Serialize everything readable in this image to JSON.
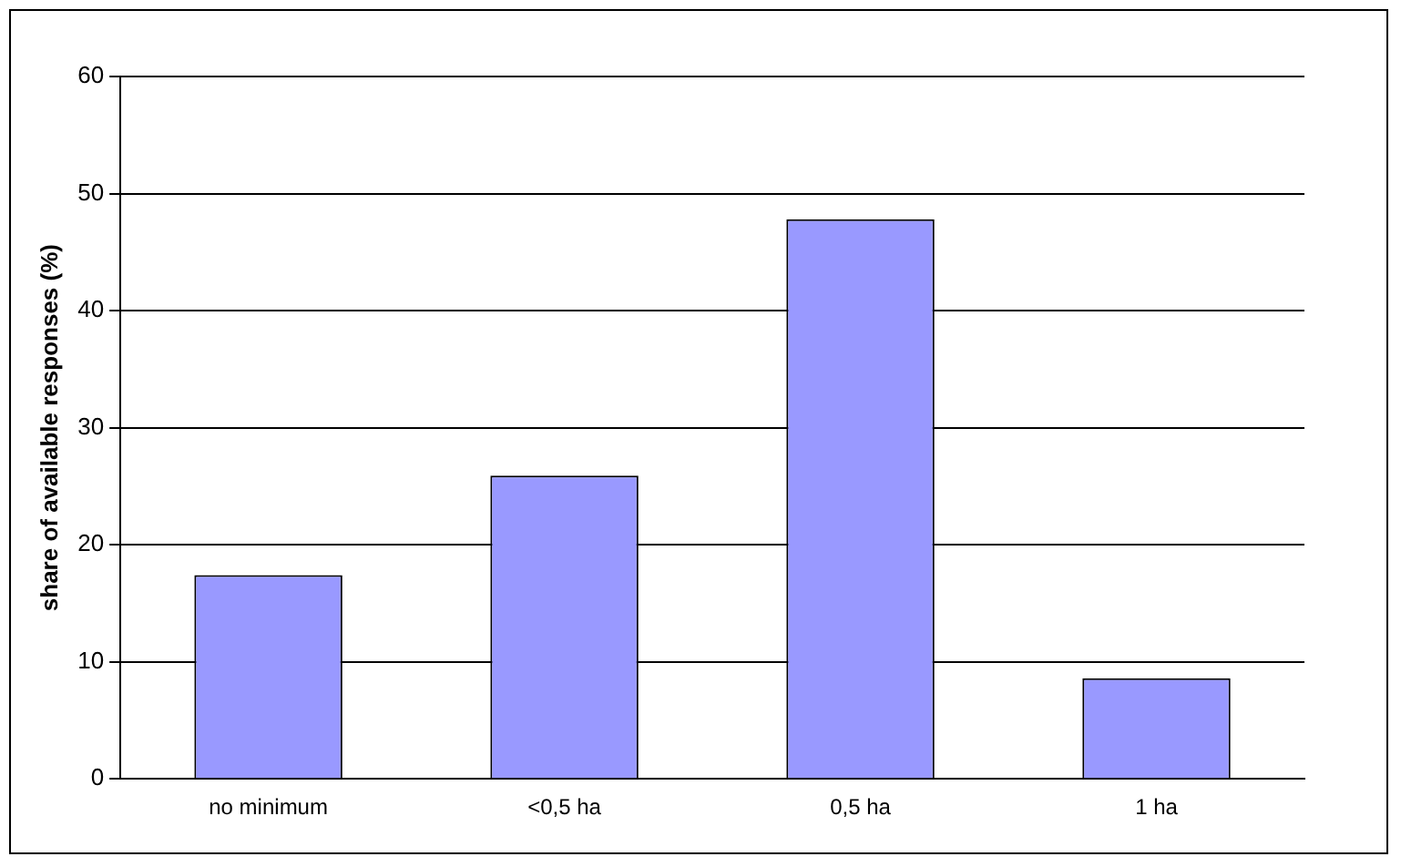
{
  "chart_data": {
    "type": "bar",
    "ylabel": "share of available responses (%)",
    "categories": [
      "no minimum",
      "<0,5 ha",
      "0,5 ha",
      "1 ha"
    ],
    "values": [
      17.4,
      25.9,
      47.8,
      8.6
    ],
    "color": "#9999ff",
    "ylim": [
      0,
      60
    ],
    "yticks": [
      0,
      10,
      20,
      30,
      40,
      50,
      60
    ],
    "grid": "y",
    "legend": false
  }
}
